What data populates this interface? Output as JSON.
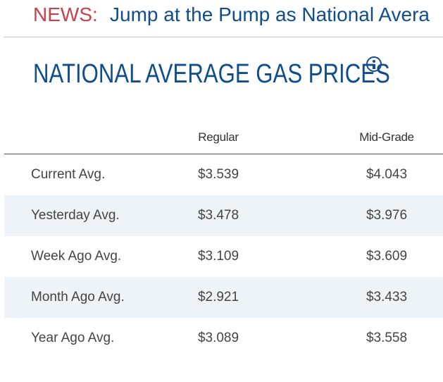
{
  "news": {
    "label": "NEWS:",
    "headline": "Jump at the Pump as National Avera"
  },
  "title": "NATIONAL AVERAGE GAS PRICES",
  "table": {
    "columns": [
      "",
      "Regular",
      "Mid-Grade"
    ],
    "rows": [
      {
        "label": "Current Avg.",
        "regular": "$3.539",
        "mid_grade": "$4.043"
      },
      {
        "label": "Yesterday Avg.",
        "regular": "$3.478",
        "mid_grade": "$3.976"
      },
      {
        "label": "Week Ago Avg.",
        "regular": "$3.109",
        "mid_grade": "$3.609"
      },
      {
        "label": "Month Ago Avg.",
        "regular": "$2.921",
        "mid_grade": "$3.433"
      },
      {
        "label": "Year Ago Avg.",
        "regular": "$3.089",
        "mid_grade": "$3.558"
      }
    ]
  },
  "colors": {
    "news_label": "#c8414b",
    "brand_blue": "#0f4d8f",
    "alt_row": "#eef3f8"
  },
  "icons": {
    "info": "info-icon"
  }
}
